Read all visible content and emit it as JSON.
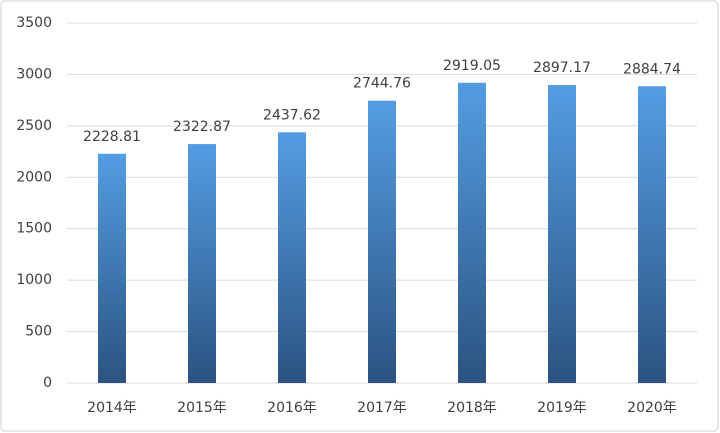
{
  "chart_data": {
    "type": "bar",
    "categories": [
      "2014年",
      "2015年",
      "2016年",
      "2017年",
      "2018年",
      "2019年",
      "2020年"
    ],
    "values": [
      2228.81,
      2322.87,
      2437.62,
      2744.76,
      2919.05,
      2897.17,
      2884.74
    ],
    "color_top": "#549de3",
    "color_bottom": "#2b5381",
    "ylim": [
      0,
      3500
    ],
    "yticks": [
      0,
      500,
      1000,
      1500,
      2000,
      2500,
      3000,
      3500
    ],
    "grid": true
  }
}
